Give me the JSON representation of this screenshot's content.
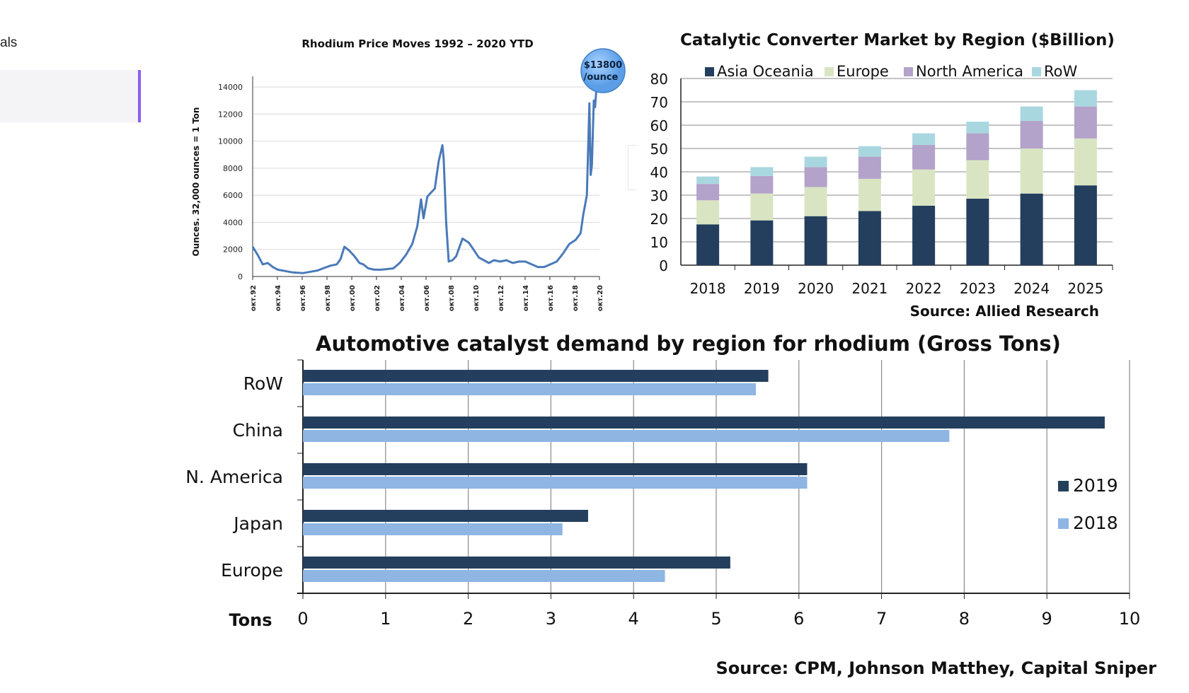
{
  "sidebar": {
    "partial_label": "als"
  },
  "charts": [
    {
      "type": "line",
      "title": "Rhodium Price Moves 1992 – 2020 YTD",
      "ylabel": "Ounces. 32,000 ounces = 1 Ton",
      "ylim": [
        0,
        14000
      ],
      "yticks": [
        "0",
        "2000",
        "4000",
        "6000",
        "8000",
        "10000",
        "12000",
        "14000"
      ],
      "xticks": [
        "окт.92",
        "окт.94",
        "окт.96",
        "окт.98",
        "окт.00",
        "окт.02",
        "окт.04",
        "окт.06",
        "окт.08",
        "окт.10",
        "окт.12",
        "окт.14",
        "окт.16",
        "окт.18",
        "окт.20"
      ],
      "badge_line1": "$13800",
      "badge_line2": "/ounce",
      "line_color": "#4a7ab8",
      "badge_color": "#5b9ee6"
    },
    {
      "type": "bar",
      "stacked": true,
      "title": "Catalytic Converter Market by Region ($Billion)",
      "source": "Source: Allied Research",
      "categories": [
        "2018",
        "2019",
        "2020",
        "2021",
        "2022",
        "2023",
        "2024",
        "2025"
      ],
      "ylim": [
        0,
        80
      ],
      "yticks": [
        "0",
        "10",
        "20",
        "30",
        "40",
        "50",
        "60",
        "70",
        "80"
      ],
      "legend_position": "top",
      "series": [
        {
          "name": "Asia Oceania",
          "color": "#243f5e",
          "values": [
            17.5,
            19.2,
            21,
            23.2,
            25.5,
            28.5,
            30.7,
            34.2
          ]
        },
        {
          "name": "Europe",
          "color": "#d9e5c2",
          "values": [
            10.3,
            11.5,
            12.5,
            13.8,
            15.5,
            16.5,
            19.3,
            20.1
          ]
        },
        {
          "name": "North America",
          "color": "#b3a2c9",
          "values": [
            7,
            7.5,
            8.5,
            9.5,
            10.5,
            11.5,
            11.8,
            13.7
          ]
        },
        {
          "name": "RoW",
          "color": "#a9d7e0",
          "values": [
            3.2,
            3.8,
            4.5,
            4.5,
            5,
            5,
            6.2,
            7
          ]
        }
      ]
    },
    {
      "type": "bar",
      "orientation": "horizontal",
      "title": "Automotive catalyst demand by region for rhodium (Gross Tons)",
      "xlabel": "Tons",
      "source": "Source: CPM, Johnson Matthey, Capital Sniper",
      "categories": [
        "RoW",
        "China",
        "N. America",
        "Japan",
        "Europe"
      ],
      "xlim": [
        0,
        10
      ],
      "xticks": [
        "0",
        "1",
        "2",
        "3",
        "4",
        "5",
        "6",
        "7",
        "8",
        "9",
        "10"
      ],
      "legend_position": "right",
      "series": [
        {
          "name": "2019",
          "color": "#243f5e",
          "values": [
            5.63,
            9.7,
            6.1,
            3.45,
            5.17
          ]
        },
        {
          "name": "2018",
          "color": "#8fb5e3",
          "values": [
            5.48,
            7.82,
            6.1,
            3.14,
            4.38
          ]
        }
      ]
    }
  ],
  "chart_data": [
    {
      "type": "line",
      "title": "Rhodium Price Moves 1992 – 2020 YTD",
      "ylabel": "Ounces. 32,000 ounces = 1 Ton",
      "ylim": [
        0,
        14000
      ],
      "x": [
        1992.8,
        1993.2,
        1993.6,
        1994.0,
        1994.4,
        1994.8,
        1995.4,
        1996.0,
        1996.8,
        1997.4,
        1998.0,
        1998.4,
        1999.0,
        1999.5,
        1999.8,
        2000.1,
        2000.5,
        2000.9,
        2001.3,
        2001.6,
        2002.0,
        2002.5,
        2003.0,
        2003.5,
        2004.0,
        2004.5,
        2005.0,
        2005.5,
        2005.9,
        2006.2,
        2006.4,
        2006.7,
        2007.0,
        2007.3,
        2007.6,
        2007.9,
        2008.0,
        2008.2,
        2008.4,
        2008.7,
        2009.0,
        2009.5,
        2010.0,
        2010.3,
        2010.8,
        2011.2,
        2011.6,
        2012.0,
        2012.5,
        2013.0,
        2013.5,
        2014.0,
        2014.5,
        2015.0,
        2015.5,
        2016.0,
        2016.5,
        2017.0,
        2017.5,
        2018.0,
        2018.5,
        2018.9,
        2019.1,
        2019.4,
        2019.6,
        2019.7,
        2019.8,
        2019.95,
        2020.05,
        2020.15
      ],
      "values": [
        2200,
        1600,
        900,
        1000,
        700,
        500,
        400,
        300,
        250,
        350,
        450,
        600,
        800,
        900,
        1300,
        2200,
        1900,
        1500,
        1000,
        900,
        600,
        500,
        500,
        550,
        600,
        1000,
        1600,
        2400,
        3700,
        5700,
        4300,
        5900,
        6200,
        6500,
        8500,
        9700,
        8700,
        4000,
        1100,
        1200,
        1500,
        2800,
        2500,
        2100,
        1400,
        1200,
        1000,
        1200,
        1100,
        1200,
        1000,
        1100,
        1100,
        900,
        700,
        700,
        900,
        1100,
        1700,
        2400,
        2700,
        3200,
        4500,
        6000,
        12800,
        7500,
        8200,
        13000,
        12500,
        13800
      ]
    },
    {
      "type": "bar",
      "stacked": true,
      "title": "Catalytic Converter Market by Region ($Billion)",
      "categories": [
        "2018",
        "2019",
        "2020",
        "2021",
        "2022",
        "2023",
        "2024",
        "2025"
      ],
      "ylim": [
        0,
        80
      ],
      "series": [
        {
          "name": "Asia Oceania",
          "values": [
            17.5,
            19.2,
            21,
            23.2,
            25.5,
            28.5,
            30.7,
            34.2
          ]
        },
        {
          "name": "Europe",
          "values": [
            10.3,
            11.5,
            12.5,
            13.8,
            15.5,
            16.5,
            19.3,
            20.1
          ]
        },
        {
          "name": "North America",
          "values": [
            7,
            7.5,
            8.5,
            9.5,
            10.5,
            11.5,
            11.8,
            13.7
          ]
        },
        {
          "name": "RoW",
          "values": [
            3.2,
            3.8,
            4.5,
            4.5,
            5,
            5,
            6.2,
            7
          ]
        }
      ]
    },
    {
      "type": "bar",
      "orientation": "horizontal",
      "title": "Automotive catalyst demand by region for rhodium (Gross Tons)",
      "xlabel": "Tons",
      "categories": [
        "RoW",
        "China",
        "N. America",
        "Japan",
        "Europe"
      ],
      "xlim": [
        0,
        10
      ],
      "series": [
        {
          "name": "2019",
          "values": [
            5.63,
            9.7,
            6.1,
            3.45,
            5.17
          ]
        },
        {
          "name": "2018",
          "values": [
            5.48,
            7.82,
            6.1,
            3.14,
            4.38
          ]
        }
      ]
    }
  ]
}
